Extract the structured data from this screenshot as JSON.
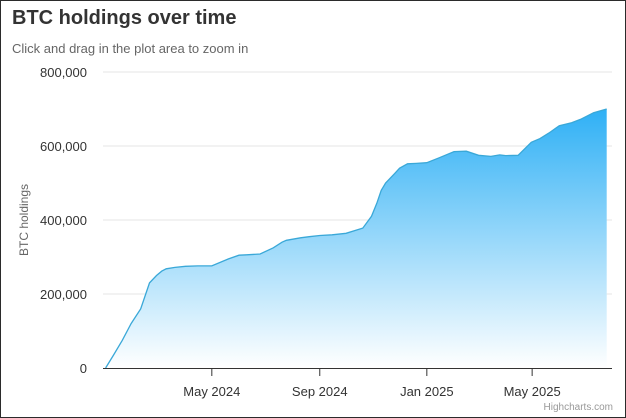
{
  "chart_data": {
    "type": "area",
    "title": "BTC holdings over time",
    "subtitle": "Click and drag in the plot area to zoom in",
    "xlabel": "",
    "ylabel": "BTC holdings",
    "ylim": [
      0,
      800000
    ],
    "y_ticks": [
      0,
      200000,
      400000,
      600000,
      800000
    ],
    "y_tick_labels": [
      "0",
      "200,000",
      "400,000",
      "600,000",
      "800,000"
    ],
    "x_ticks": [
      "2024-05-01",
      "2024-09-01",
      "2025-01-01",
      "2025-05-01"
    ],
    "x_tick_labels": [
      "May 2024",
      "Sep 2024",
      "Jan 2025",
      "May 2025"
    ],
    "xlim": [
      "2023-12-29",
      "2025-07-31"
    ],
    "grid": "horizontal",
    "legend": "none",
    "colors": {
      "line": "#3aa8d8",
      "fill_top": "#2fb0f5",
      "fill_bottom": "#ffffff",
      "grid": "#e6e6e6",
      "axis": "#333333"
    },
    "series": [
      {
        "x": [
          "2024-01-01",
          "2024-01-10",
          "2024-01-20",
          "2024-01-30",
          "2024-02-10",
          "2024-02-20",
          "2024-02-28",
          "2024-03-05",
          "2024-03-10",
          "2024-03-20",
          "2024-04-01",
          "2024-04-15",
          "2024-05-01",
          "2024-05-20",
          "2024-06-01",
          "2024-06-10",
          "2024-06-25",
          "2024-07-10",
          "2024-07-20",
          "2024-07-25",
          "2024-08-10",
          "2024-08-20",
          "2024-09-01",
          "2024-09-15",
          "2024-10-01",
          "2024-10-20",
          "2024-10-30",
          "2024-11-05",
          "2024-11-10",
          "2024-11-15",
          "2024-11-25",
          "2024-12-01",
          "2024-12-10",
          "2024-12-20",
          "2025-01-01",
          "2025-01-15",
          "2025-02-01",
          "2025-02-15",
          "2025-03-01",
          "2025-03-15",
          "2025-03-25",
          "2025-04-01",
          "2025-04-15",
          "2025-04-30",
          "2025-05-10",
          "2025-05-20",
          "2025-06-01",
          "2025-06-15",
          "2025-06-25",
          "2025-07-10",
          "2025-07-25"
        ],
        "values": [
          0,
          35000,
          75000,
          120000,
          160000,
          230000,
          250000,
          262000,
          268000,
          272000,
          275000,
          276000,
          276000,
          295000,
          305000,
          306000,
          308000,
          325000,
          340000,
          345000,
          352000,
          355000,
          358000,
          360000,
          364000,
          378000,
          410000,
          445000,
          480000,
          500000,
          525000,
          540000,
          552000,
          553000,
          555000,
          568000,
          585000,
          586000,
          575000,
          572000,
          576000,
          574000,
          575000,
          610000,
          620000,
          635000,
          655000,
          663000,
          672000,
          690000,
          700000
        ]
      }
    ]
  },
  "credits": "Highcharts.com"
}
